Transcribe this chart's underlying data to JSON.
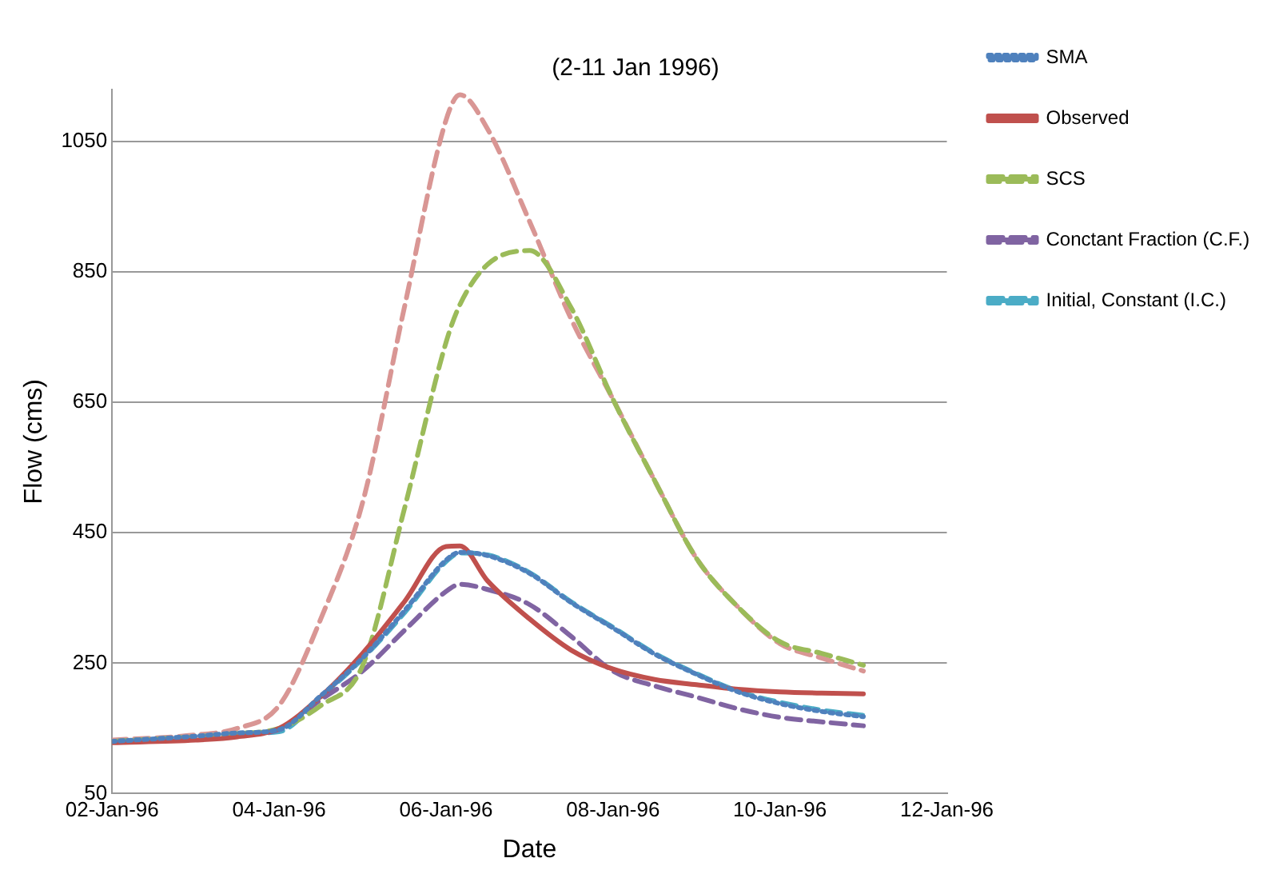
{
  "chart_data": {
    "type": "line",
    "title": "(2-11 Jan 1996)",
    "xlabel": "Date",
    "ylabel": "Flow (cms)",
    "x": [
      "1996-01-02",
      "1996-01-03",
      "1996-01-03T12:00",
      "1996-01-04",
      "1996-01-04T12:00",
      "1996-01-05",
      "1996-01-05T12:00",
      "1996-01-06",
      "1996-01-06T04:00",
      "1996-01-06T12:00",
      "1996-01-07",
      "1996-01-07T12:00",
      "1996-01-08",
      "1996-01-08T12:00",
      "1996-01-09",
      "1996-01-09T12:00",
      "1996-01-10",
      "1996-01-10T12:00",
      "1996-01-11"
    ],
    "series": [
      {
        "name": "SMA",
        "color": "#4f81bd",
        "line_style": "dotted",
        "values": [
          130,
          138,
          143,
          148,
          200,
          258,
          330,
          408,
          420,
          415,
          388,
          343,
          304,
          264,
          233,
          206,
          188,
          176,
          168
        ]
      },
      {
        "name": "Observed",
        "color": "#c0504d",
        "line_style": "solid",
        "values": [
          128,
          132,
          137,
          150,
          199,
          265,
          344,
          429,
          430,
          376,
          318,
          270,
          241,
          225,
          217,
          210,
          206,
          204,
          203
        ]
      },
      {
        "name": "SCS",
        "color": "#9bbb59",
        "line_style": "dashed",
        "values": [
          130,
          137,
          142,
          150,
          185,
          246,
          486,
          742,
          800,
          862,
          883,
          795,
          655,
          530,
          411,
          336,
          283,
          265,
          247
        ]
      },
      {
        "name": "Conctant Fraction (C.F.)",
        "color": "#8064a2",
        "line_style": "dashed",
        "values": [
          130,
          135,
          140,
          148,
          194,
          238,
          300,
          360,
          371,
          363,
          340,
          291,
          238,
          215,
          198,
          180,
          167,
          160,
          154
        ]
      },
      {
        "name": "Initial, Constant (I.C.)",
        "color": "#4bacc6",
        "line_style": "dashed",
        "values": [
          130,
          137,
          142,
          145,
          198,
          257,
          327,
          406,
          419,
          416,
          389,
          344,
          305,
          265,
          234,
          207,
          190,
          178,
          170
        ]
      },
      {
        "color": "#d99694",
        "line_style": "dashed",
        "values": [
          132,
          140,
          150,
          185,
          318,
          496,
          795,
          1083,
          1122,
          1069,
          928,
          778,
          655,
          530,
          411,
          336,
          280,
          258,
          238
        ]
      }
    ],
    "xlim": [
      "1996-01-02",
      "1996-01-12"
    ],
    "xticks": [
      {
        "value": "1996-01-02",
        "label": "02-Jan-96"
      },
      {
        "value": "1996-01-04",
        "label": "04-Jan-96"
      },
      {
        "value": "1996-01-06",
        "label": "06-Jan-96"
      },
      {
        "value": "1996-01-08",
        "label": "08-Jan-96"
      },
      {
        "value": "1996-01-10",
        "label": "10-Jan-96"
      },
      {
        "value": "1996-01-12",
        "label": "12-Jan-96"
      }
    ],
    "ylim": [
      50,
      1130
    ],
    "yticks": [
      50,
      250,
      450,
      650,
      850,
      1050
    ],
    "grid": "y",
    "legend": "right",
    "marker": "none"
  }
}
